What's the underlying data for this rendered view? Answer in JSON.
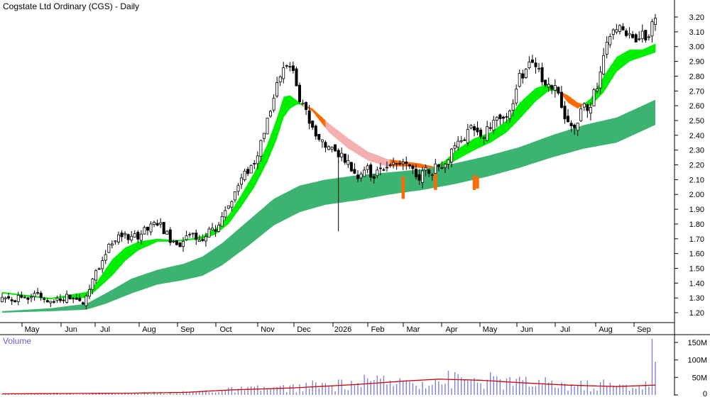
{
  "chart_data": {
    "type": "candlestick",
    "title": "Cogstate Ltd Ordinary (CGS) - Daily",
    "price_axis": {
      "ticks": [
        "3.20",
        "3.10",
        "3.00",
        "2.90",
        "2.80",
        "2.70",
        "2.60",
        "2.50",
        "2.40",
        "2.30",
        "2.20",
        "2.10",
        "2.00",
        "1.90",
        "1.80",
        "1.70",
        "1.60",
        "1.50",
        "1.40",
        "1.30",
        "1.20"
      ],
      "range": [
        1.13,
        3.25
      ],
      "side": "right"
    },
    "x_axis": {
      "labels": [
        "May",
        "Jun",
        "Jul",
        "Aug",
        "Sep",
        "Oct",
        "Nov",
        "Dec",
        "2026",
        "Feb",
        "Mar",
        "Apr",
        "May",
        "Jun",
        "Jul",
        "Aug",
        "Sep"
      ]
    },
    "price_path": [
      [
        0,
        1.28
      ],
      [
        5,
        1.3
      ],
      [
        10,
        1.32
      ],
      [
        15,
        1.27
      ],
      [
        20,
        1.3
      ],
      [
        25,
        1.28
      ],
      [
        29,
        1.48
      ],
      [
        33,
        1.64
      ],
      [
        36,
        1.73
      ],
      [
        40,
        1.7
      ],
      [
        45,
        1.76
      ],
      [
        48,
        1.81
      ],
      [
        50,
        1.76
      ],
      [
        52,
        1.7
      ],
      [
        55,
        1.67
      ],
      [
        58,
        1.72
      ],
      [
        62,
        1.69
      ],
      [
        66,
        1.78
      ],
      [
        70,
        1.93
      ],
      [
        74,
        2.1
      ],
      [
        78,
        2.22
      ],
      [
        82,
        2.5
      ],
      [
        86,
        2.8
      ],
      [
        88,
        2.88
      ],
      [
        90,
        2.83
      ],
      [
        92,
        2.62
      ],
      [
        94,
        2.58
      ],
      [
        95,
        2.45
      ],
      [
        98,
        2.38
      ],
      [
        101,
        2.32
      ],
      [
        104,
        2.28
      ],
      [
        106,
        2.25
      ],
      [
        108,
        2.17
      ],
      [
        110,
        2.13
      ],
      [
        112,
        2.18
      ],
      [
        115,
        2.12
      ],
      [
        118,
        2.18
      ],
      [
        121,
        2.2
      ],
      [
        124,
        2.23
      ],
      [
        127,
        2.15
      ],
      [
        129,
        2.1
      ],
      [
        131,
        2.17
      ],
      [
        134,
        2.17
      ],
      [
        137,
        2.24
      ],
      [
        140,
        2.33
      ],
      [
        143,
        2.4
      ],
      [
        146,
        2.45
      ],
      [
        149,
        2.42
      ],
      [
        152,
        2.48
      ],
      [
        156,
        2.55
      ],
      [
        158,
        2.64
      ],
      [
        160,
        2.78
      ],
      [
        163,
        2.88
      ],
      [
        166,
        2.82
      ],
      [
        169,
        2.76
      ],
      [
        172,
        2.68
      ],
      [
        174,
        2.55
      ],
      [
        176,
        2.46
      ],
      [
        178,
        2.5
      ],
      [
        180,
        2.58
      ],
      [
        182,
        2.62
      ],
      [
        184,
        2.72
      ],
      [
        186,
        2.9
      ],
      [
        188,
        3.08
      ],
      [
        190,
        3.13
      ],
      [
        193,
        3.1
      ],
      [
        196,
        3.05
      ],
      [
        199,
        3.07
      ],
      [
        202,
        3.18
      ]
    ],
    "ema_short_fast": [
      [
        0,
        1.34
      ],
      [
        15,
        1.3
      ],
      [
        26,
        1.34
      ],
      [
        29,
        1.4
      ],
      [
        34,
        1.56
      ],
      [
        38,
        1.64
      ],
      [
        42,
        1.68
      ],
      [
        48,
        1.7
      ],
      [
        54,
        1.69
      ],
      [
        58,
        1.7
      ],
      [
        62,
        1.72
      ],
      [
        66,
        1.77
      ],
      [
        70,
        1.86
      ],
      [
        74,
        2.0
      ],
      [
        78,
        2.15
      ],
      [
        82,
        2.34
      ],
      [
        85,
        2.52
      ],
      [
        87,
        2.66
      ],
      [
        89,
        2.67
      ],
      [
        92,
        2.62
      ],
      [
        96,
        2.56
      ],
      [
        101,
        2.42
      ],
      [
        107,
        2.31
      ],
      [
        113,
        2.23
      ],
      [
        119,
        2.19
      ],
      [
        125,
        2.19
      ],
      [
        129,
        2.18
      ],
      [
        133,
        2.18
      ],
      [
        137,
        2.23
      ],
      [
        141,
        2.31
      ],
      [
        146,
        2.38
      ],
      [
        151,
        2.42
      ],
      [
        156,
        2.5
      ],
      [
        160,
        2.62
      ],
      [
        165,
        2.72
      ],
      [
        169,
        2.75
      ],
      [
        172,
        2.7
      ],
      [
        175,
        2.62
      ],
      [
        178,
        2.58
      ],
      [
        182,
        2.65
      ],
      [
        186,
        2.8
      ],
      [
        190,
        2.93
      ],
      [
        194,
        2.98
      ],
      [
        198,
        2.98
      ],
      [
        202,
        3.02
      ]
    ],
    "ema_short_slow": [
      [
        0,
        1.33
      ],
      [
        15,
        1.3
      ],
      [
        26,
        1.3
      ],
      [
        29,
        1.35
      ],
      [
        34,
        1.45
      ],
      [
        38,
        1.55
      ],
      [
        42,
        1.62
      ],
      [
        48,
        1.68
      ],
      [
        54,
        1.68
      ],
      [
        58,
        1.69
      ],
      [
        62,
        1.7
      ],
      [
        66,
        1.73
      ],
      [
        70,
        1.8
      ],
      [
        74,
        1.92
      ],
      [
        78,
        2.05
      ],
      [
        82,
        2.22
      ],
      [
        85,
        2.38
      ],
      [
        87,
        2.52
      ],
      [
        89,
        2.58
      ],
      [
        92,
        2.62
      ],
      [
        96,
        2.58
      ],
      [
        101,
        2.48
      ],
      [
        107,
        2.38
      ],
      [
        113,
        2.29
      ],
      [
        119,
        2.24
      ],
      [
        125,
        2.22
      ],
      [
        129,
        2.21
      ],
      [
        133,
        2.19
      ],
      [
        137,
        2.19
      ],
      [
        141,
        2.24
      ],
      [
        146,
        2.3
      ],
      [
        151,
        2.35
      ],
      [
        156,
        2.42
      ],
      [
        160,
        2.51
      ],
      [
        165,
        2.63
      ],
      [
        169,
        2.7
      ],
      [
        172,
        2.7
      ],
      [
        175,
        2.67
      ],
      [
        178,
        2.62
      ],
      [
        182,
        2.6
      ],
      [
        186,
        2.69
      ],
      [
        190,
        2.83
      ],
      [
        194,
        2.9
      ],
      [
        198,
        2.93
      ],
      [
        202,
        2.96
      ]
    ],
    "ema_long_fast": [
      [
        0,
        1.21
      ],
      [
        15,
        1.23
      ],
      [
        26,
        1.26
      ],
      [
        32,
        1.33
      ],
      [
        40,
        1.43
      ],
      [
        48,
        1.49
      ],
      [
        56,
        1.53
      ],
      [
        62,
        1.58
      ],
      [
        68,
        1.67
      ],
      [
        76,
        1.82
      ],
      [
        84,
        1.97
      ],
      [
        92,
        2.06
      ],
      [
        100,
        2.1
      ],
      [
        110,
        2.13
      ],
      [
        120,
        2.15
      ],
      [
        130,
        2.17
      ],
      [
        140,
        2.21
      ],
      [
        150,
        2.26
      ],
      [
        160,
        2.32
      ],
      [
        170,
        2.4
      ],
      [
        180,
        2.47
      ],
      [
        190,
        2.52
      ],
      [
        202,
        2.64
      ]
    ],
    "ema_long_slow": [
      [
        0,
        1.2
      ],
      [
        15,
        1.21
      ],
      [
        26,
        1.22
      ],
      [
        32,
        1.26
      ],
      [
        40,
        1.33
      ],
      [
        48,
        1.39
      ],
      [
        56,
        1.42
      ],
      [
        62,
        1.45
      ],
      [
        68,
        1.52
      ],
      [
        76,
        1.65
      ],
      [
        84,
        1.79
      ],
      [
        92,
        1.88
      ],
      [
        100,
        1.93
      ],
      [
        110,
        1.96
      ],
      [
        120,
        2.0
      ],
      [
        130,
        2.03
      ],
      [
        140,
        2.07
      ],
      [
        150,
        2.12
      ],
      [
        160,
        2.18
      ],
      [
        170,
        2.25
      ],
      [
        180,
        2.31
      ],
      [
        190,
        2.35
      ],
      [
        202,
        2.47
      ]
    ],
    "volume_axis": {
      "ticks": [
        "150M",
        "100M",
        "50M",
        "0"
      ],
      "max": 165
    },
    "volume_spikes": [
      [
        96,
        41
      ],
      [
        108,
        40
      ],
      [
        112,
        58
      ],
      [
        113,
        47
      ],
      [
        119,
        30
      ],
      [
        122,
        30
      ],
      [
        126,
        38
      ],
      [
        137,
        32
      ],
      [
        148,
        33
      ],
      [
        161,
        42
      ],
      [
        183,
        18
      ],
      [
        186,
        44
      ],
      [
        200,
        24
      ],
      [
        201,
        160
      ],
      [
        202,
        95
      ]
    ],
    "volume_ma": [
      [
        0,
        3
      ],
      [
        40,
        5
      ],
      [
        56,
        7
      ],
      [
        70,
        14
      ],
      [
        90,
        20
      ],
      [
        110,
        30
      ],
      [
        125,
        40
      ],
      [
        135,
        45
      ],
      [
        148,
        42
      ],
      [
        160,
        35
      ],
      [
        175,
        28
      ],
      [
        190,
        24
      ],
      [
        202,
        28
      ]
    ],
    "colors": {
      "candle": "#000000",
      "short_band_up": "#00ee00",
      "short_band_down": "#ff6a00",
      "short_band_down_light": "#f4b0ae",
      "long_band": "#3cb371",
      "long_band_touch": "#ff6a00",
      "volume_bar": "#8080dd",
      "volume_ma": "#cc0000",
      "axis_text": "#000000",
      "volume_label": "#6a5acd"
    }
  },
  "volume_label": "Volume"
}
